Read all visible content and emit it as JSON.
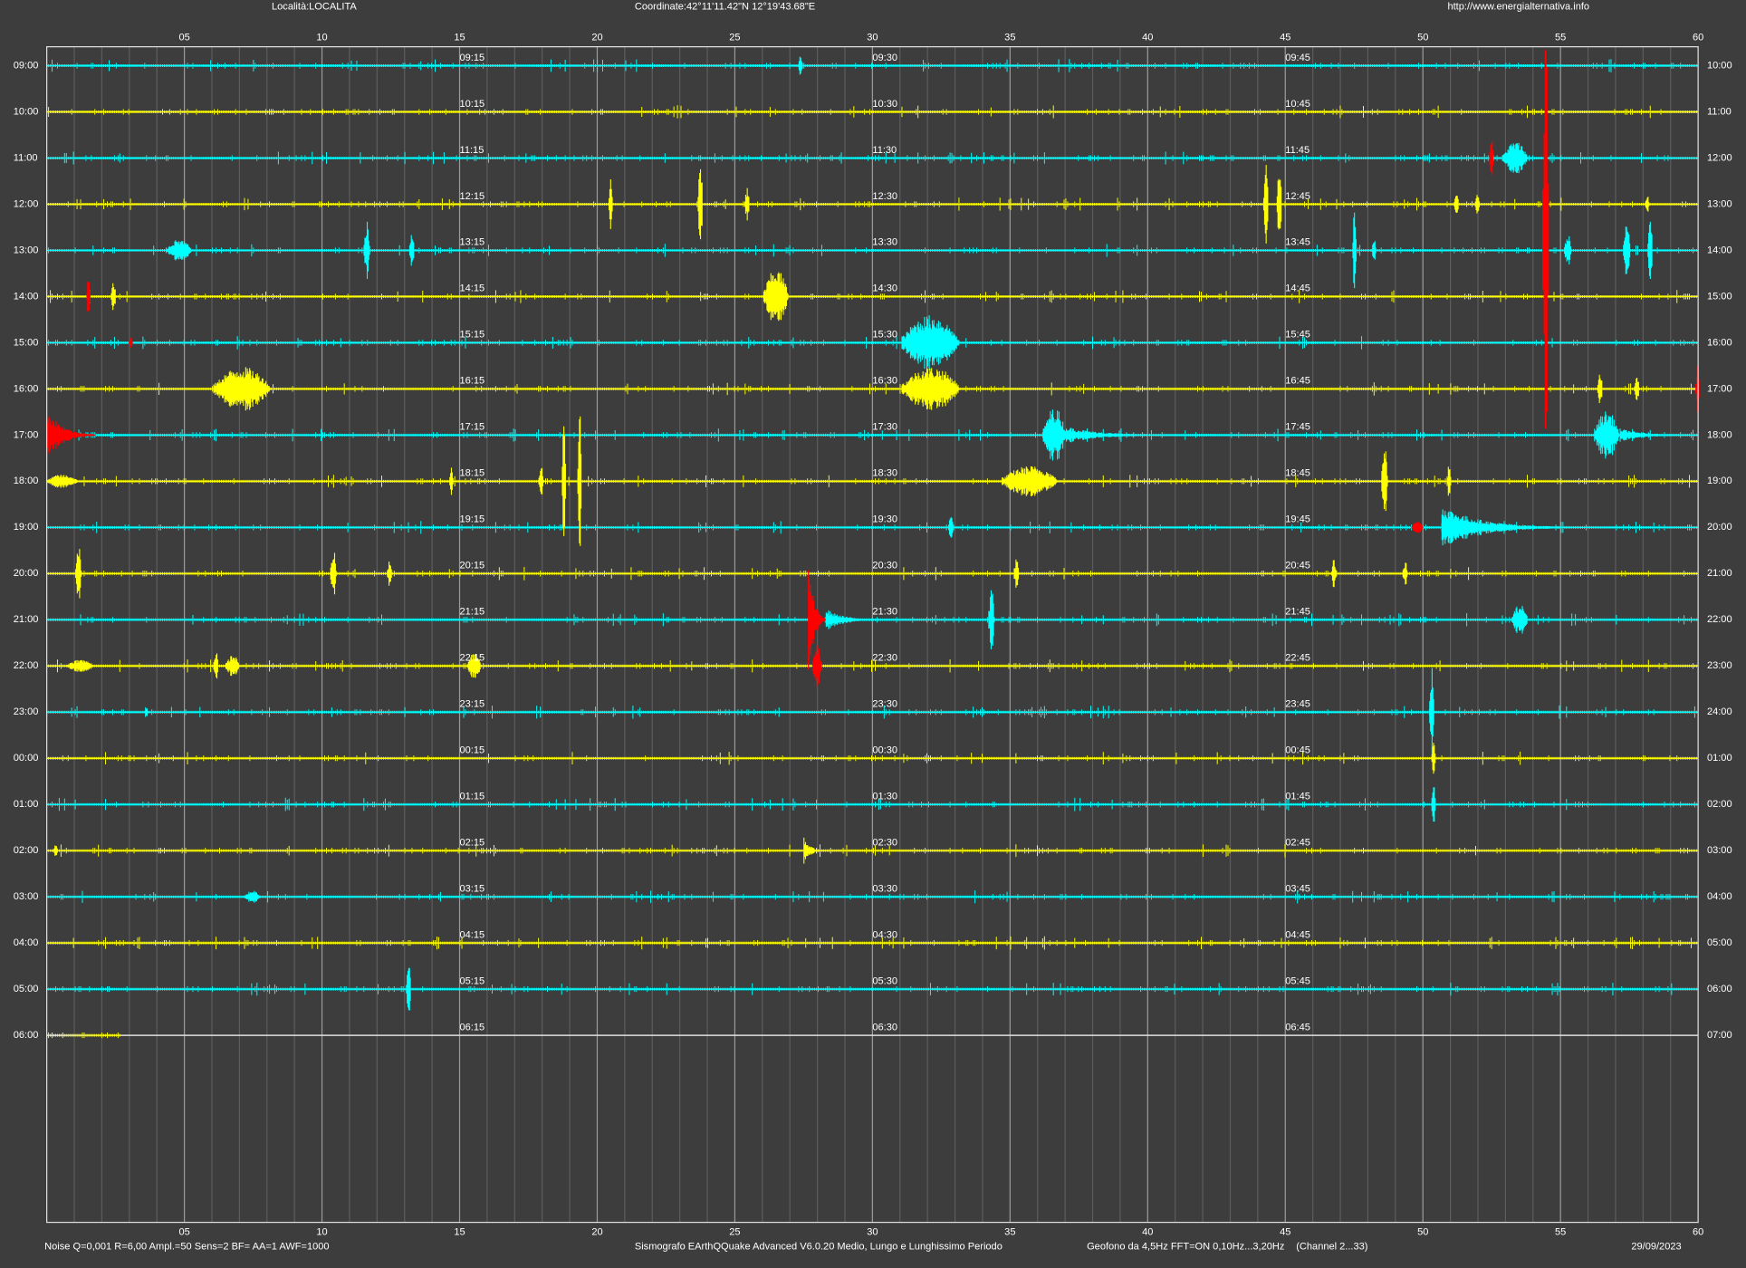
{
  "header": {
    "location": "Località:LOCALITA",
    "coordinates": "Coordinate:42°11'11.42\"N  12°19'43.68\"E",
    "url": "http://www.energialternativa.info"
  },
  "minute_axis": [
    "05",
    "10",
    "15",
    "20",
    "25",
    "30",
    "35",
    "40",
    "45",
    "50",
    "55",
    "60"
  ],
  "left_hours": [
    "09:00",
    "10:00",
    "11:00",
    "12:00",
    "13:00",
    "14:00",
    "15:00",
    "16:00",
    "17:00",
    "18:00",
    "19:00",
    "20:00",
    "21:00",
    "22:00",
    "23:00",
    "00:00",
    "01:00",
    "02:00",
    "03:00",
    "04:00",
    "05:00",
    "06:00"
  ],
  "right_hours": [
    "10:00",
    "11:00",
    "12:00",
    "13:00",
    "14:00",
    "15:00",
    "16:00",
    "17:00",
    "18:00",
    "19:00",
    "20:00",
    "21:00",
    "22:00",
    "23:00",
    "24:00",
    "01:00",
    "02:00",
    "03:00",
    "04:00",
    "05:00",
    "06:00",
    "07:00"
  ],
  "mid_labels": [
    [
      "09:15",
      "09:30",
      "09:45"
    ],
    [
      "10:15",
      "10:30",
      "10:45"
    ],
    [
      "11:15",
      "11:30",
      "11:45"
    ],
    [
      "12:15",
      "12:30",
      "12:45"
    ],
    [
      "13:15",
      "13:30",
      "13:45"
    ],
    [
      "14:15",
      "14:30",
      "14:45"
    ],
    [
      "15:15",
      "15:30",
      "15:45"
    ],
    [
      "16:15",
      "16:30",
      "16:45"
    ],
    [
      "17:15",
      "17:30",
      "17:45"
    ],
    [
      "18:15",
      "18:30",
      "18:45"
    ],
    [
      "19:15",
      "19:30",
      "19:45"
    ],
    [
      "20:15",
      "20:30",
      "20:45"
    ],
    [
      "21:15",
      "21:30",
      "21:45"
    ],
    [
      "22:15",
      "22:30",
      "22:45"
    ],
    [
      "23:15",
      "23:30",
      "23:45"
    ],
    [
      "00:15",
      "00:30",
      "00:45"
    ],
    [
      "01:15",
      "01:30",
      "01:45"
    ],
    [
      "02:15",
      "02:30",
      "02:45"
    ],
    [
      "03:15",
      "03:30",
      "03:45"
    ],
    [
      "04:15",
      "04:30",
      "04:45"
    ],
    [
      "05:15",
      "05:30",
      "05:45"
    ],
    [
      "06:15",
      "06:30",
      "06:45"
    ]
  ],
  "footer": {
    "noise": "Noise Q=0,001 R=6,00 Ampl.=50 Sens=2 BF= AA=1 AWF=1000",
    "software": "Sismografo  EArthQQuake Advanced V6.0.20  Medio, Lungo e Lunghissimo Periodo",
    "geofono": "Geofono da 4,5Hz FFT=ON 0,10Hz...3,20Hz",
    "channel": "(Channel 2...33)",
    "date": "29/09/2023"
  }
}
